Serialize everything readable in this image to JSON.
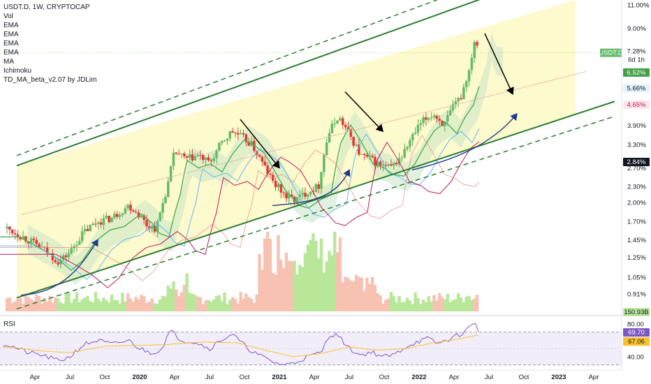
{
  "legend": {
    "title": "USDT.D, 1W, CRYPTOCAP",
    "studies": [
      "Vol",
      "EMA",
      "EMA",
      "EMA",
      "EMA",
      "MA",
      "Ichimoku",
      "TD_MA_beta_v2.07 by JDLim"
    ]
  },
  "rsi_label": "RSI",
  "colors": {
    "up": "#26a69a",
    "down": "#ef5350",
    "channel": "#2e7d32",
    "arrow_down": "#000000",
    "arrow_up": "#1e3a8a",
    "td_line": "#4caf50",
    "ema_pink": "#c2185b",
    "ema_blue": "#64b5f6",
    "rsi_line": "#7e57c2",
    "rsi_ma": "#fbc02d"
  },
  "badges": [
    {
      "text": "USDT.D",
      "kind": "symbol"
    },
    {
      "text": "7.28%",
      "kind": "price"
    },
    {
      "text": "6d 1h",
      "kind": "price-sub"
    },
    {
      "text": "6.52%",
      "kind": "green"
    },
    {
      "text": "5.66%",
      "kind": "blue"
    },
    {
      "text": "4.65%",
      "kind": "pink"
    },
    {
      "text": "2.84%",
      "kind": "dark"
    },
    {
      "text": "150.93B",
      "kind": "vol"
    },
    {
      "text": "69.70",
      "kind": "rsi"
    },
    {
      "text": "67.06",
      "kind": "rsi-ma"
    }
  ],
  "chart_data": {
    "type": "candlestick",
    "symbol": "USDT.D",
    "timeframe": "1W",
    "source": "CRYPTOCAP",
    "y_scale": "log",
    "price_axis_ticks": [
      "11.00%",
      "9.00%",
      "7.28%",
      "6.52%",
      "5.66%",
      "4.65%",
      "3.90%",
      "3.30%",
      "2.84%",
      "2.70%",
      "2.30%",
      "2.00%",
      "1.70%",
      "1.45%",
      "1.25%",
      "1.05%",
      "0.91%"
    ],
    "price_axis_values": [
      11.0,
      9.0,
      7.28,
      6.52,
      5.66,
      4.65,
      3.9,
      3.3,
      2.84,
      2.7,
      2.3,
      2.0,
      1.7,
      1.45,
      1.25,
      1.05,
      0.91
    ],
    "time_axis_labels": [
      "Apr",
      "Jul",
      "Oct",
      "2020",
      "Apr",
      "Jul",
      "Oct",
      "2021",
      "Apr",
      "Jul",
      "Oct",
      "2022",
      "Apr",
      "Jul",
      "Oct",
      "2023",
      "Apr"
    ],
    "time_axis_values": [
      2019.25,
      2019.5,
      2019.75,
      2020.0,
      2020.25,
      2020.5,
      2020.75,
      2021.0,
      2021.25,
      2021.5,
      2021.75,
      2022.0,
      2022.25,
      2022.5,
      2022.75,
      2023.0,
      2023.25
    ],
    "price_path": [
      [
        2019.05,
        1.6
      ],
      [
        2019.2,
        1.45
      ],
      [
        2019.3,
        1.35
      ],
      [
        2019.42,
        1.2
      ],
      [
        2019.5,
        1.3
      ],
      [
        2019.6,
        1.55
      ],
      [
        2019.7,
        1.7
      ],
      [
        2019.8,
        1.75
      ],
      [
        2019.92,
        1.95
      ],
      [
        2020.0,
        1.8
      ],
      [
        2020.05,
        1.65
      ],
      [
        2020.12,
        1.6
      ],
      [
        2020.2,
        2.3
      ],
      [
        2020.25,
        3.1
      ],
      [
        2020.33,
        2.9
      ],
      [
        2020.42,
        3.0
      ],
      [
        2020.5,
        2.8
      ],
      [
        2020.58,
        3.3
      ],
      [
        2020.66,
        3.7
      ],
      [
        2020.72,
        3.55
      ],
      [
        2020.8,
        3.3
      ],
      [
        2020.88,
        2.8
      ],
      [
        2020.95,
        2.4
      ],
      [
        2021.05,
        2.1
      ],
      [
        2021.12,
        2.05
      ],
      [
        2021.2,
        2.2
      ],
      [
        2021.28,
        2.3
      ],
      [
        2021.35,
        3.6
      ],
      [
        2021.42,
        4.2
      ],
      [
        2021.5,
        3.6
      ],
      [
        2021.58,
        3.0
      ],
      [
        2021.66,
        2.9
      ],
      [
        2021.72,
        2.75
      ],
      [
        2021.8,
        2.7
      ],
      [
        2021.88,
        3.0
      ],
      [
        2021.95,
        3.5
      ],
      [
        2022.02,
        4.0
      ],
      [
        2022.1,
        4.3
      ],
      [
        2022.18,
        3.9
      ],
      [
        2022.24,
        4.5
      ],
      [
        2022.3,
        5.0
      ],
      [
        2022.36,
        6.3
      ],
      [
        2022.4,
        8.3
      ],
      [
        2022.43,
        7.28
      ]
    ],
    "volume_label": "150.93B",
    "rsi": {
      "value": 69.7,
      "ma": 67.06,
      "ticks": [
        80.0,
        40.0
      ],
      "band_high": 70,
      "band_low": 30,
      "path": [
        [
          2019.05,
          55
        ],
        [
          2019.2,
          45
        ],
        [
          2019.3,
          42
        ],
        [
          2019.42,
          35
        ],
        [
          2019.5,
          40
        ],
        [
          2019.6,
          55
        ],
        [
          2019.7,
          60
        ],
        [
          2019.8,
          55
        ],
        [
          2019.92,
          60
        ],
        [
          2020.0,
          50
        ],
        [
          2020.08,
          45
        ],
        [
          2020.15,
          48
        ],
        [
          2020.22,
          72
        ],
        [
          2020.3,
          60
        ],
        [
          2020.4,
          58
        ],
        [
          2020.5,
          50
        ],
        [
          2020.58,
          60
        ],
        [
          2020.66,
          68
        ],
        [
          2020.74,
          55
        ],
        [
          2020.82,
          45
        ],
        [
          2020.9,
          38
        ],
        [
          2020.98,
          32
        ],
        [
          2021.05,
          30
        ],
        [
          2021.12,
          34
        ],
        [
          2021.2,
          40
        ],
        [
          2021.3,
          45
        ],
        [
          2021.36,
          68
        ],
        [
          2021.42,
          66
        ],
        [
          2021.5,
          50
        ],
        [
          2021.58,
          42
        ],
        [
          2021.66,
          46
        ],
        [
          2021.74,
          40
        ],
        [
          2021.82,
          42
        ],
        [
          2021.9,
          52
        ],
        [
          2021.98,
          58
        ],
        [
          2022.06,
          62
        ],
        [
          2022.14,
          56
        ],
        [
          2022.22,
          62
        ],
        [
          2022.3,
          68
        ],
        [
          2022.36,
          75
        ],
        [
          2022.4,
          84
        ],
        [
          2022.43,
          70
        ]
      ],
      "ma_path": [
        [
          2019.05,
          52
        ],
        [
          2019.3,
          47
        ],
        [
          2019.5,
          45
        ],
        [
          2019.75,
          53
        ],
        [
          2020.0,
          54
        ],
        [
          2020.2,
          55
        ],
        [
          2020.45,
          58
        ],
        [
          2020.7,
          57
        ],
        [
          2020.9,
          48
        ],
        [
          2021.1,
          40
        ],
        [
          2021.3,
          44
        ],
        [
          2021.5,
          52
        ],
        [
          2021.7,
          48
        ],
        [
          2021.9,
          50
        ],
        [
          2022.1,
          57
        ],
        [
          2022.3,
          62
        ],
        [
          2022.43,
          67
        ]
      ]
    }
  }
}
